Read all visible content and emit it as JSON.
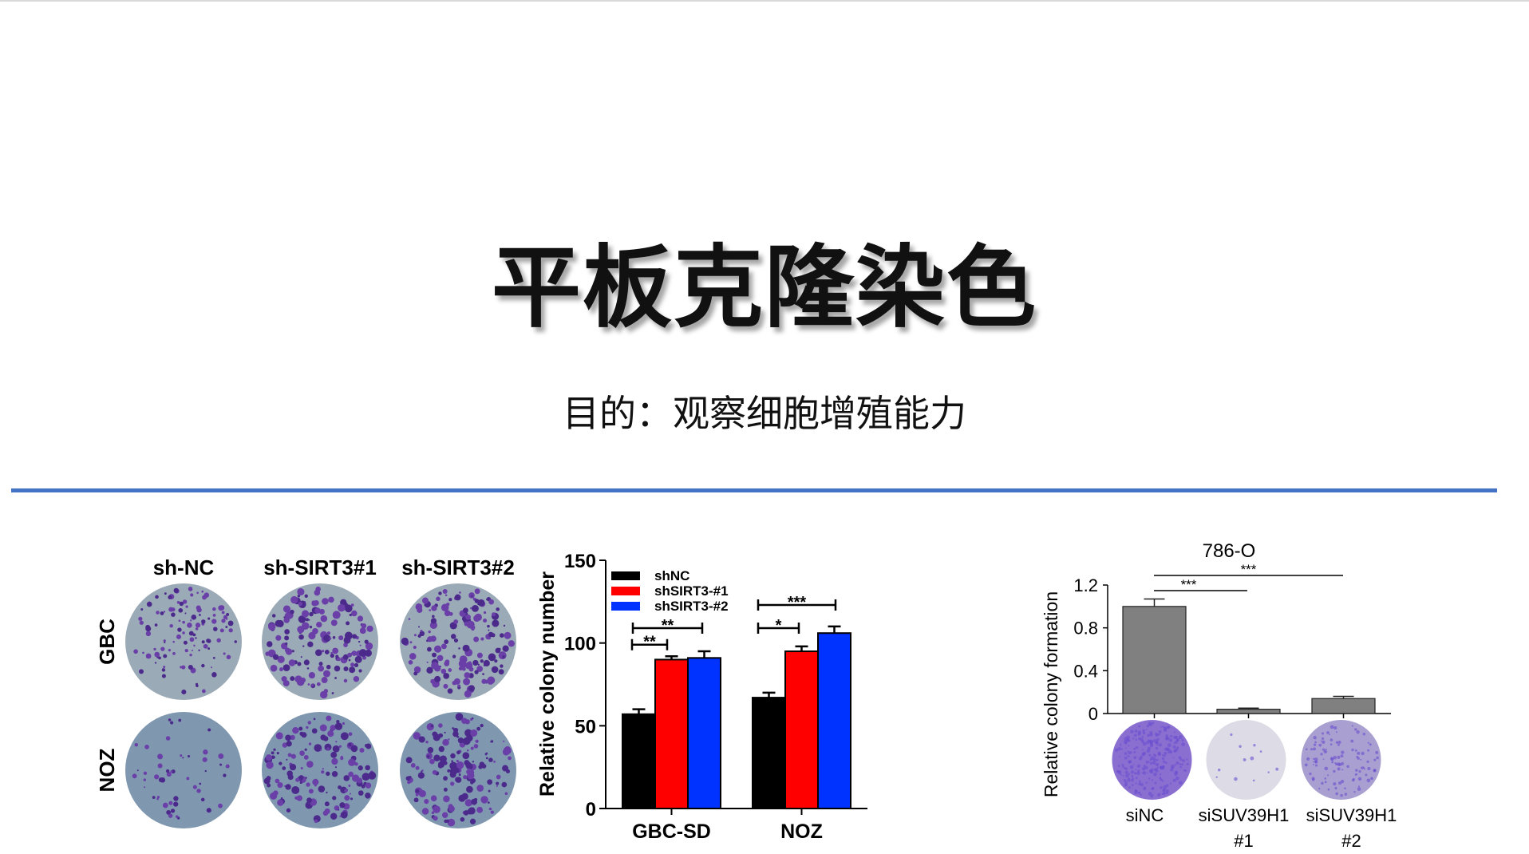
{
  "slide": {
    "title": "平板克隆染色",
    "subtitle": "目的：观察细胞增殖能力",
    "accent_color": "#4472c4"
  },
  "plates_panel": {
    "column_labels": [
      "sh-NC",
      "sh-SIRT3#1",
      "sh-SIRT3#2"
    ],
    "row_labels": [
      "GBC",
      "NOZ"
    ]
  },
  "chart_data": [
    {
      "type": "bar",
      "title": "",
      "xlabel": "",
      "ylabel": "Relative colony number",
      "ylim": [
        0,
        150
      ],
      "yticks": [
        "0",
        "50",
        "100",
        "150"
      ],
      "categories": [
        "GBC-SD",
        "NOZ"
      ],
      "legend_position": "top-left",
      "series": [
        {
          "name": "shNC",
          "color": "#000000",
          "values": [
            57,
            67
          ],
          "errors": [
            3,
            3
          ]
        },
        {
          "name": "shSIRT3-#1",
          "color": "#ff0000",
          "values": [
            90,
            95
          ],
          "errors": [
            2,
            3
          ]
        },
        {
          "name": "shSIRT3-#2",
          "color": "#0033ff",
          "values": [
            91,
            106
          ],
          "errors": [
            4,
            4
          ]
        }
      ],
      "significance": [
        {
          "group": "GBC-SD",
          "from": "shNC",
          "to": "shSIRT3-#1",
          "label": "**"
        },
        {
          "group": "GBC-SD",
          "from": "shNC",
          "to": "shSIRT3-#2",
          "label": "**"
        },
        {
          "group": "NOZ",
          "from": "shNC",
          "to": "shSIRT3-#1",
          "label": "*"
        },
        {
          "group": "NOZ",
          "from": "shNC",
          "to": "shSIRT3-#2",
          "label": "***"
        }
      ]
    },
    {
      "type": "bar",
      "title": "786-O",
      "xlabel": "",
      "ylabel": "Relative colony formation",
      "ylim": [
        0,
        1.2
      ],
      "yticks": [
        "0",
        "0.4",
        "0.8",
        "1.2"
      ],
      "categories": [
        "siNC",
        "siSUV39H1 #1",
        "siSUV39H1 #2"
      ],
      "category_lines": [
        [
          "siNC",
          ""
        ],
        [
          "siSUV39H1",
          "#1"
        ],
        [
          "siSUV39H1",
          "#2"
        ]
      ],
      "bar_color": "#808080",
      "values": [
        1.0,
        0.04,
        0.14
      ],
      "errors": [
        0.07,
        0.01,
        0.02
      ],
      "significance": [
        {
          "from": "siNC",
          "to": "siSUV39H1 #1",
          "label": "***"
        },
        {
          "from": "siNC",
          "to": "siSUV39H1 #2",
          "label": "***"
        }
      ]
    }
  ]
}
